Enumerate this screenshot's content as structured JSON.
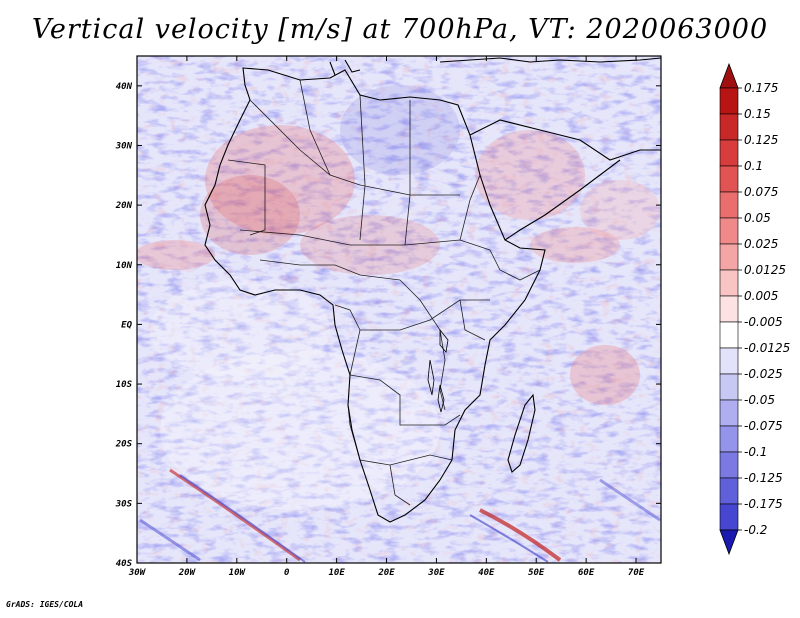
{
  "title": "Vertical velocity [m/s] at 700hPa, VT: 2020063000",
  "credit": "GrADS: IGES/COLA",
  "map": {
    "variable": "vertical velocity",
    "level": "700hPa",
    "valid_time": "2020063000",
    "lon_range": [
      -30,
      75
    ],
    "lat_range": [
      -40,
      45
    ],
    "lat_ticks": [
      {
        "value": 40,
        "label": "40N"
      },
      {
        "value": 30,
        "label": "30N"
      },
      {
        "value": 20,
        "label": "20N"
      },
      {
        "value": 10,
        "label": "10N"
      },
      {
        "value": 0,
        "label": "EQ"
      },
      {
        "value": -10,
        "label": "10S"
      },
      {
        "value": -20,
        "label": "20S"
      },
      {
        "value": -30,
        "label": "30S"
      },
      {
        "value": -40,
        "label": "40S"
      }
    ],
    "lon_ticks": [
      {
        "value": -30,
        "label": "30W"
      },
      {
        "value": -20,
        "label": "20W"
      },
      {
        "value": -10,
        "label": "10W"
      },
      {
        "value": 0,
        "label": "0"
      },
      {
        "value": 10,
        "label": "10E"
      },
      {
        "value": 20,
        "label": "20E"
      },
      {
        "value": 30,
        "label": "30E"
      },
      {
        "value": 40,
        "label": "40E"
      },
      {
        "value": 50,
        "label": "50E"
      },
      {
        "value": 60,
        "label": "60E"
      },
      {
        "value": 70,
        "label": "70E"
      }
    ]
  },
  "colorbar": {
    "levels": [
      {
        "label": "0.175",
        "color": "#b81414"
      },
      {
        "label": "0.15",
        "color": "#c82828"
      },
      {
        "label": "0.125",
        "color": "#d83c3c"
      },
      {
        "label": "0.1",
        "color": "#e25454"
      },
      {
        "label": "0.075",
        "color": "#ea6e6e"
      },
      {
        "label": "0.05",
        "color": "#f08a8a"
      },
      {
        "label": "0.025",
        "color": "#f4a6a6"
      },
      {
        "label": "0.0125",
        "color": "#f8c4c4"
      },
      {
        "label": "0.005",
        "color": "#fce2e2"
      },
      {
        "label": "-0.005",
        "color": "#ffffff"
      },
      {
        "label": "-0.0125",
        "color": "#e2e2fa"
      },
      {
        "label": "-0.025",
        "color": "#c8c8f4"
      },
      {
        "label": "-0.05",
        "color": "#aeaef0"
      },
      {
        "label": "-0.075",
        "color": "#9494ea"
      },
      {
        "label": "-0.1",
        "color": "#7a7ae2"
      },
      {
        "label": "-0.125",
        "color": "#6060da"
      },
      {
        "label": "-0.175",
        "color": "#4646d0"
      },
      {
        "label": "-0.2",
        "color": "#2c2cc4"
      }
    ],
    "top_color": "#a01010",
    "bottom_color": "#1a1ab0"
  }
}
